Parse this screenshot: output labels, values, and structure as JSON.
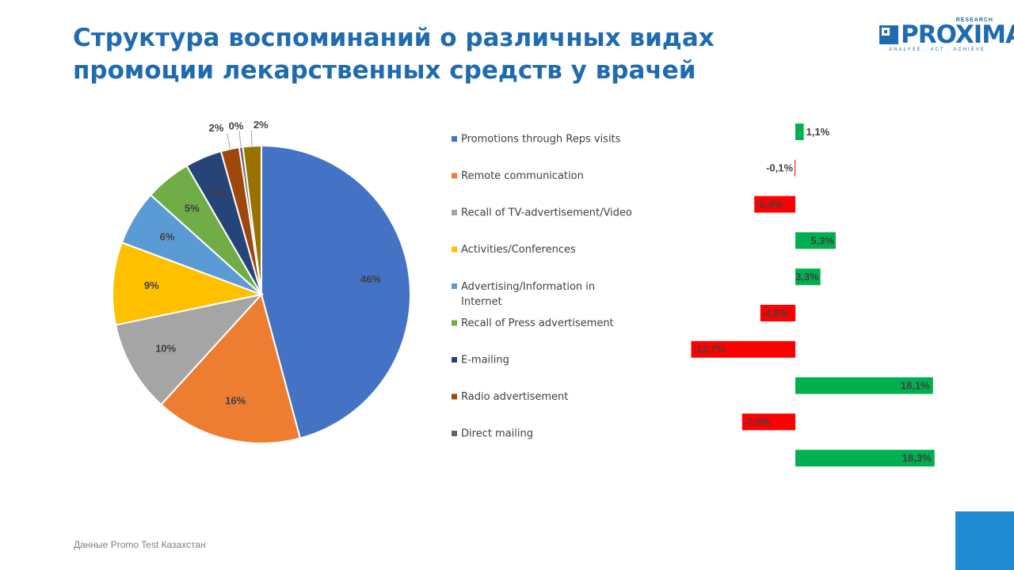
{
  "title": {
    "line1": "Структура воспоминаний о различных видах",
    "line2": "промоции лекарственных средств у врачей"
  },
  "logo": {
    "word": "PROXIMA",
    "research": "RESEARCH",
    "tagline": "ANALYSE · ACT · ACHIEVE"
  },
  "source": "Данные Promo  Test Казахстан",
  "colors": {
    "accent": "#1f6bb0",
    "positive": "#00b050",
    "negative": "#ff0000",
    "corner": "#1f8bd1"
  },
  "chart_data": [
    {
      "type": "pie",
      "categories": [
        "Promotions through Reps visits",
        "Remote communication",
        "Recall of TV-advertisement/Video",
        "Activities/Conferences",
        "Advertising/Information in Internet",
        "Recall of Press advertisement",
        "E-mailing",
        "Radio advertisement",
        "Direct mailing",
        ""
      ],
      "values": [
        46,
        16,
        10,
        9,
        6,
        5,
        4,
        2,
        0.4,
        2
      ],
      "labels": [
        "46%",
        "16%",
        "10%",
        "9%",
        "6%",
        "5%",
        "4%",
        "2%",
        "0%",
        "2%"
      ],
      "colors": [
        "#4472c4",
        "#ed7d31",
        "#a5a5a5",
        "#ffc000",
        "#5b9bd5",
        "#70ad47",
        "#264478",
        "#9e480e",
        "#636363",
        "#997300"
      ],
      "legend": "right"
    },
    {
      "type": "bar",
      "orientation": "horizontal",
      "values": [
        1.1,
        -0.1,
        -5.4,
        5.3,
        3.3,
        -4.6,
        -13.7,
        18.1,
        -7.0,
        18.3
      ],
      "labels": [
        "1,1%",
        "-0,1%",
        "-5,4%",
        "5,3%",
        "3,3%",
        "-4,6%",
        "-13,7%",
        "18,1%",
        "-7,0%",
        "18,3%"
      ]
    }
  ]
}
